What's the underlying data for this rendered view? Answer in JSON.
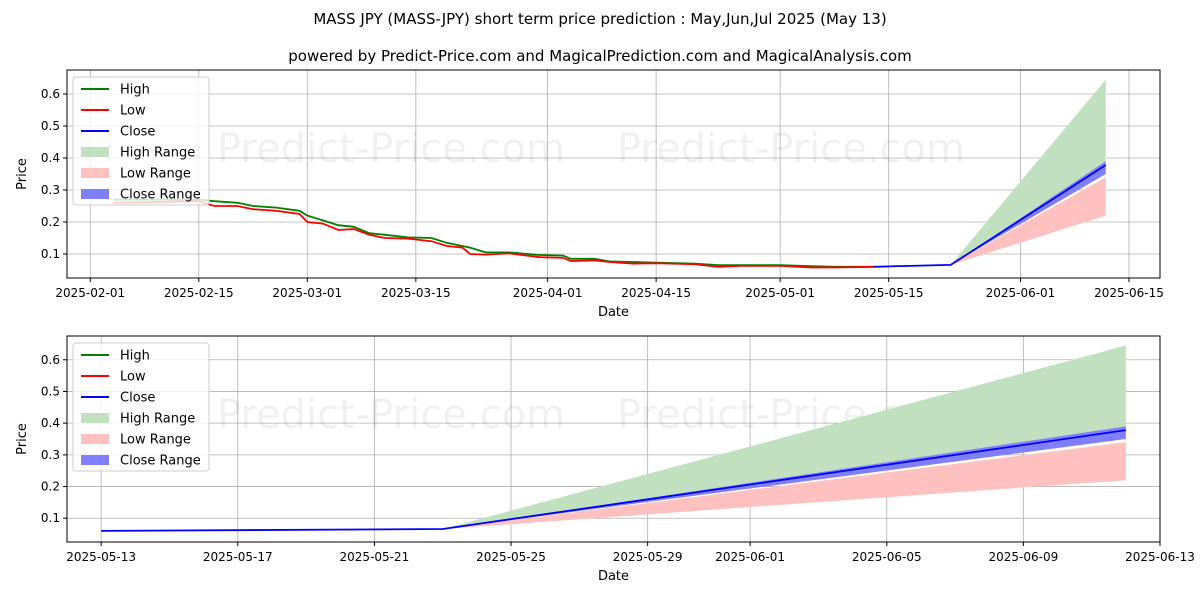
{
  "title": "MASS JPY (MASS-JPY) short term price prediction : May,Jun,Jul 2025 (May 13)",
  "subtitle": "powered by Predict-Price.com and MagicalPrediction.com and MagicalAnalysis.com",
  "watermark": "Predict-Price.com",
  "colors": {
    "high": "#008000",
    "low": "#ff0000",
    "close": "#0000ff",
    "high_range": "#c0e0c0",
    "low_range": "#ffc0c0",
    "close_range": "#8080ff"
  },
  "chart_data": [
    {
      "type": "line",
      "xlabel": "Date",
      "ylabel": "Price",
      "ylim": [
        0.025,
        0.675
      ],
      "xlim": [
        "2025-01-29",
        "2025-06-19"
      ],
      "yticks": [
        0.1,
        0.2,
        0.3,
        0.4,
        0.5,
        0.6
      ],
      "xticks": [
        "2025-02-01",
        "2025-02-15",
        "2025-03-01",
        "2025-03-15",
        "2025-04-01",
        "2025-04-15",
        "2025-05-01",
        "2025-05-15",
        "2025-06-01",
        "2025-06-15"
      ],
      "legend": [
        "High",
        "Low",
        "Close",
        "High Range",
        "Low Range",
        "Close Range"
      ],
      "legend_position": "upper-left",
      "grid": true
    },
    {
      "type": "line",
      "xlabel": "Date",
      "ylabel": "Price",
      "ylim": [
        0.025,
        0.675
      ],
      "xlim": [
        "2025-05-12",
        "2025-06-13"
      ],
      "yticks": [
        0.1,
        0.2,
        0.3,
        0.4,
        0.5,
        0.6
      ],
      "xticks": [
        "2025-05-13",
        "2025-05-17",
        "2025-05-21",
        "2025-05-25",
        "2025-05-29",
        "2025-06-01",
        "2025-06-05",
        "2025-06-09",
        "2025-06-13"
      ],
      "legend": [
        "High",
        "Low",
        "Close",
        "High Range",
        "Low Range",
        "Close Range"
      ],
      "legend_position": "upper-left",
      "grid": true
    }
  ],
  "series": {
    "history": [
      [
        "2025-02-04",
        0.27,
        0.26
      ],
      [
        "2025-02-15",
        0.27,
        0.265
      ],
      [
        "2025-02-17",
        0.265,
        0.25
      ],
      [
        "2025-02-20",
        0.26,
        0.25
      ],
      [
        "2025-02-22",
        0.25,
        0.24
      ],
      [
        "2025-02-25",
        0.245,
        0.235
      ],
      [
        "2025-02-28",
        0.235,
        0.225
      ],
      [
        "2025-03-01",
        0.22,
        0.2
      ],
      [
        "2025-03-03",
        0.205,
        0.195
      ],
      [
        "2025-03-05",
        0.19,
        0.175
      ],
      [
        "2025-03-07",
        0.185,
        0.178
      ],
      [
        "2025-03-09",
        0.165,
        0.16
      ],
      [
        "2025-03-11",
        0.16,
        0.15
      ],
      [
        "2025-03-14",
        0.152,
        0.148
      ],
      [
        "2025-03-17",
        0.15,
        0.14
      ],
      [
        "2025-03-19",
        0.135,
        0.125
      ],
      [
        "2025-03-21",
        0.125,
        0.12
      ],
      [
        "2025-03-22",
        0.12,
        0.1
      ],
      [
        "2025-03-24",
        0.105,
        0.098
      ],
      [
        "2025-03-27",
        0.105,
        0.102
      ],
      [
        "2025-03-31",
        0.097,
        0.09
      ],
      [
        "2025-04-03",
        0.095,
        0.088
      ],
      [
        "2025-04-04",
        0.085,
        0.078
      ],
      [
        "2025-04-07",
        0.085,
        0.08
      ],
      [
        "2025-04-09",
        0.077,
        0.075
      ],
      [
        "2025-04-12",
        0.075,
        0.07
      ],
      [
        "2025-04-15",
        0.073,
        0.071
      ],
      [
        "2025-04-20",
        0.07,
        0.068
      ],
      [
        "2025-04-23",
        0.065,
        0.06
      ],
      [
        "2025-04-26",
        0.065,
        0.063
      ],
      [
        "2025-05-01",
        0.065,
        0.063
      ],
      [
        "2025-05-05",
        0.062,
        0.058
      ],
      [
        "2025-05-08",
        0.06,
        0.058
      ],
      [
        "2025-05-13",
        0.06,
        0.06
      ]
    ],
    "forecast": [
      [
        "2025-05-13",
        0.06,
        0.06,
        0.06,
        0.06,
        0.06,
        0.06
      ],
      [
        "2025-05-23",
        0.066,
        0.066,
        0.066,
        0.066,
        0.066,
        0.066
      ],
      [
        "2025-06-12",
        0.378,
        0.645,
        0.39,
        0.35,
        0.34,
        0.22
      ]
    ],
    "forecast_columns": [
      "date",
      "close",
      "high_upper",
      "close_upper",
      "close_lower",
      "low_upper",
      "low_lower"
    ]
  }
}
